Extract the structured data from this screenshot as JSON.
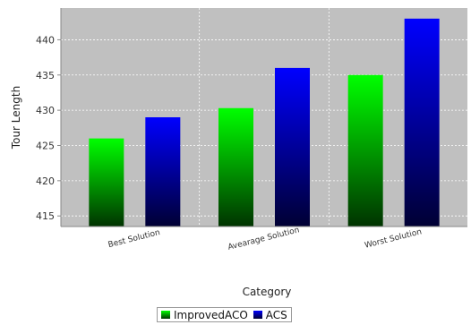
{
  "chart_data": {
    "type": "bar",
    "categories": [
      "Best Solution",
      "Avearage Solution",
      "Worst Solution"
    ],
    "series": [
      {
        "name": "ImprovedACO",
        "values": [
          426,
          430.3,
          435
        ],
        "color": "#00ff00"
      },
      {
        "name": "ACS",
        "values": [
          429,
          436,
          443
        ],
        "color": "#0000ff"
      }
    ],
    "xlabel": "Category",
    "ylabel": "Tour Length",
    "ylim": [
      413.5,
      444.5
    ],
    "yticks": [
      415,
      420,
      425,
      430,
      435,
      440
    ],
    "grid": true,
    "legend_position": "bottom-center",
    "plot_background": "#c0c0c0"
  }
}
